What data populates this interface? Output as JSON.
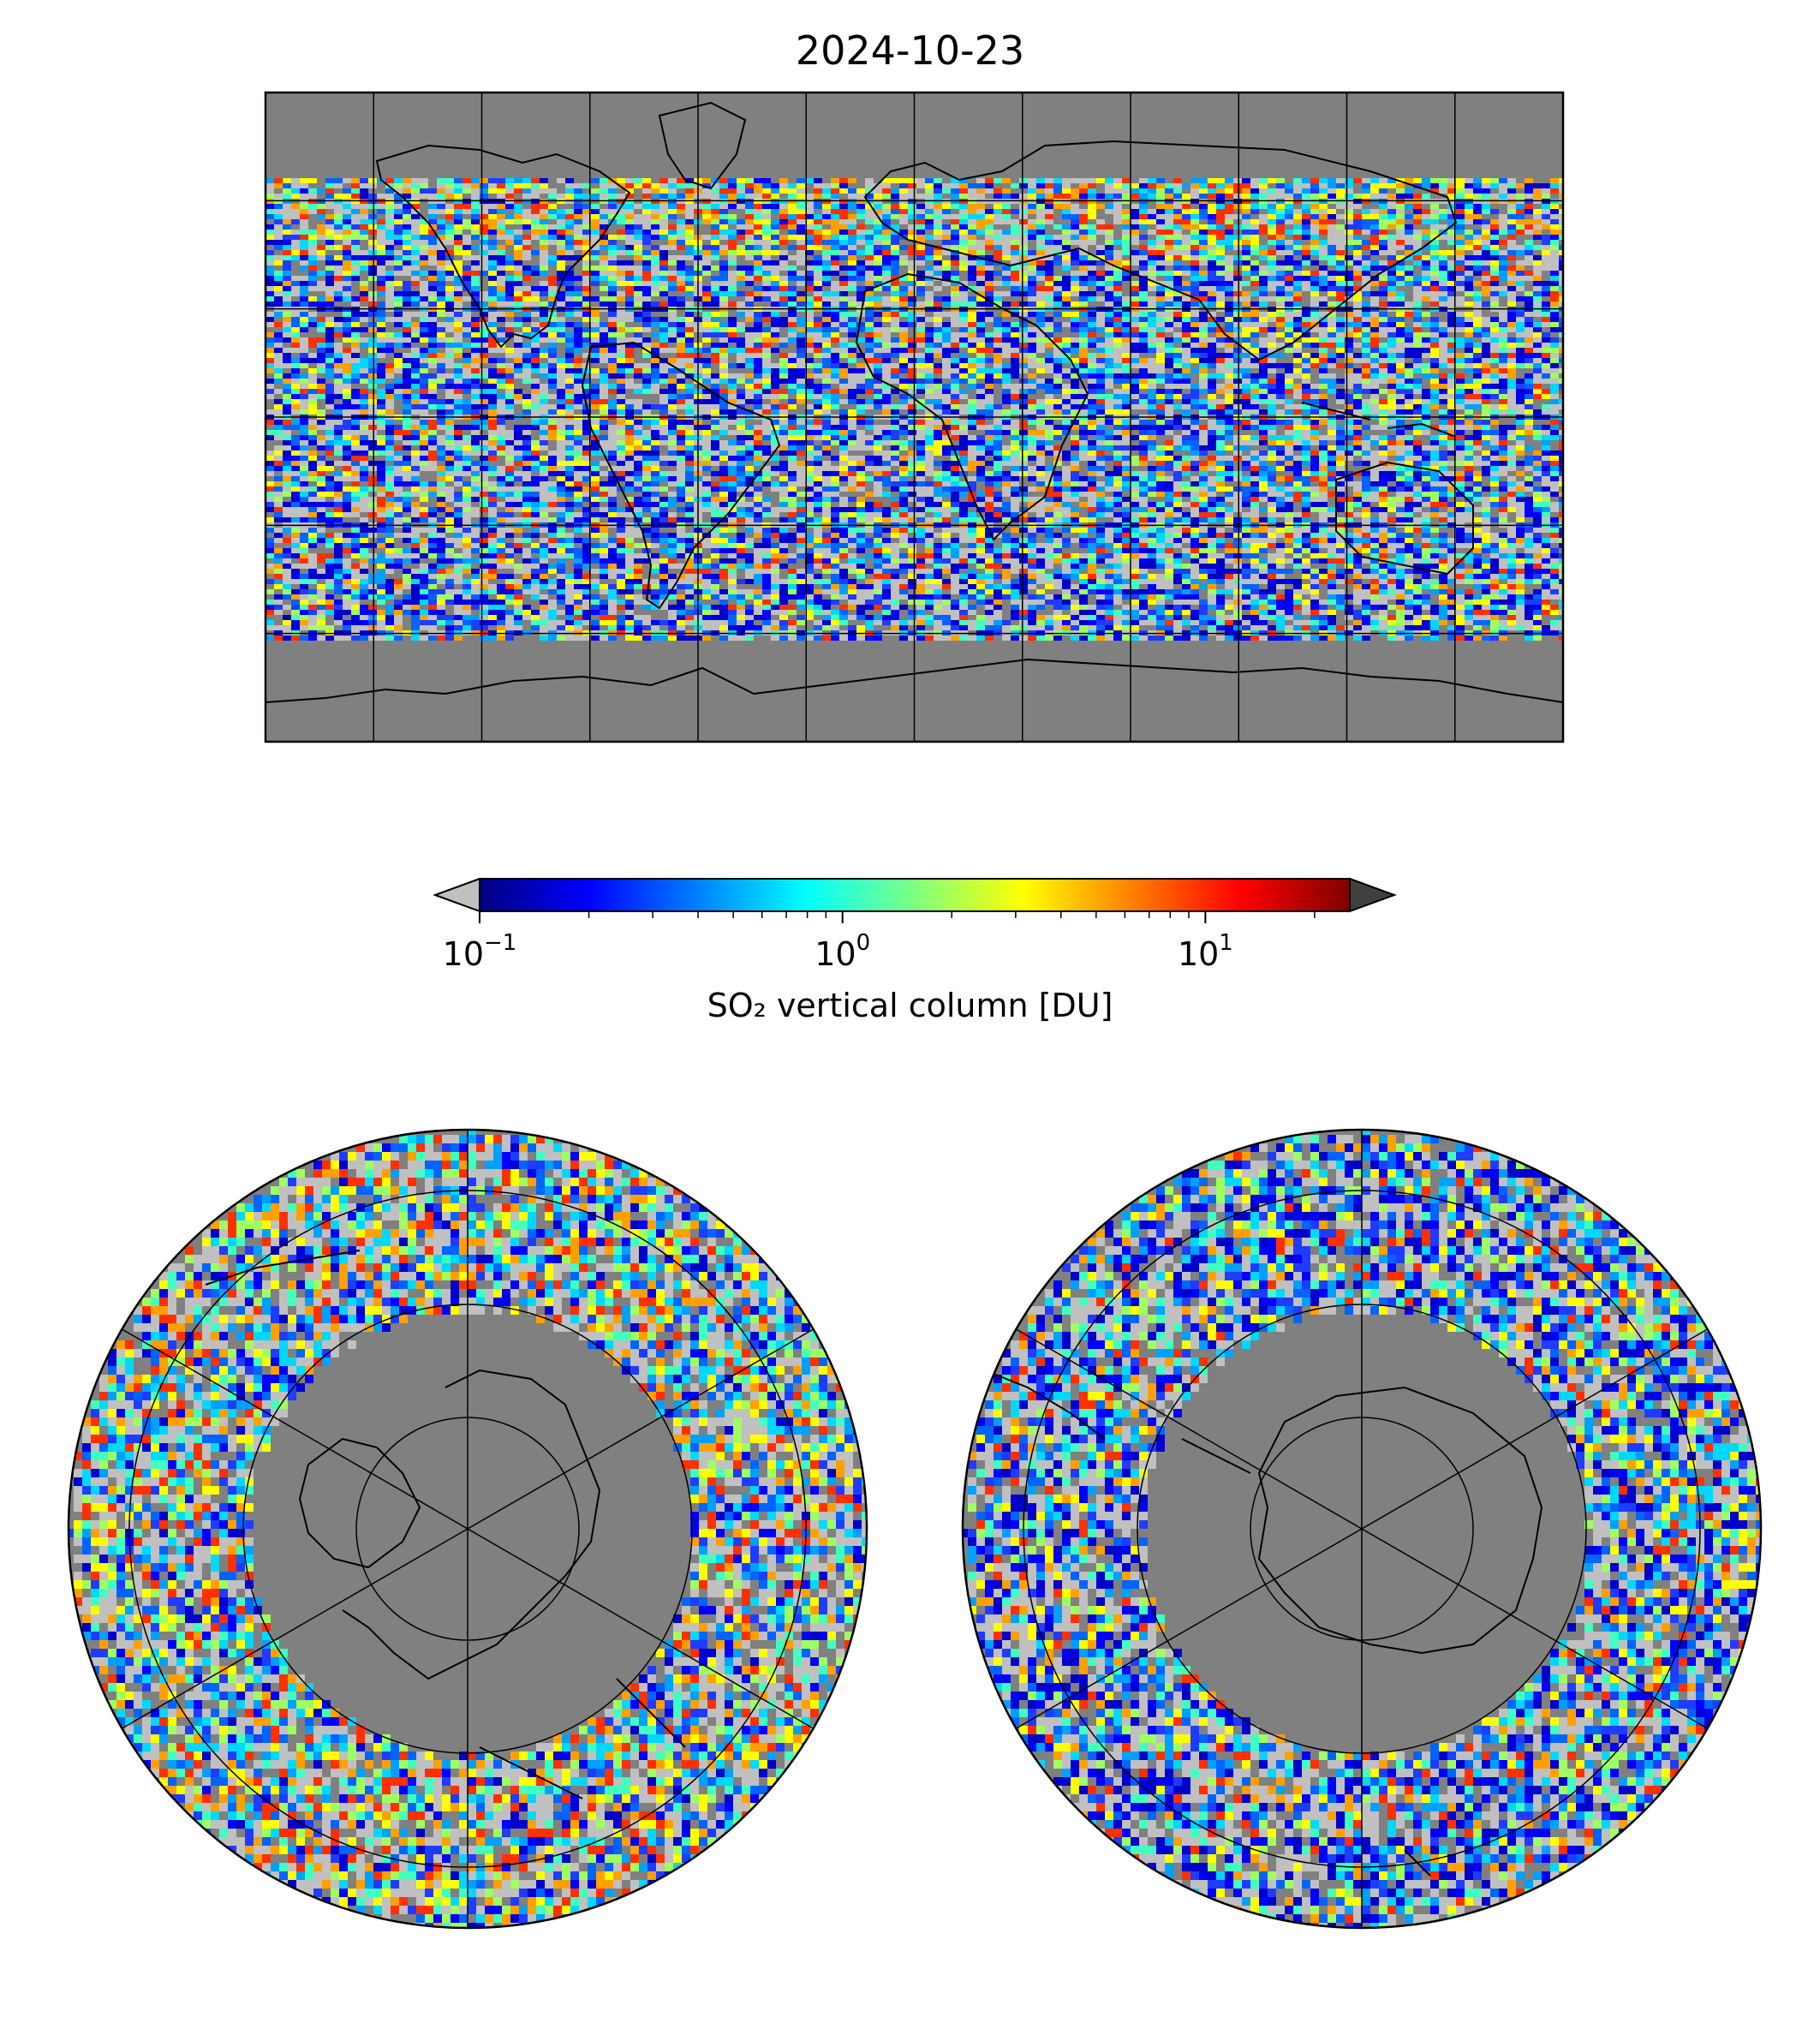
{
  "title": "2024-10-23",
  "colorbar": {
    "label": "SO₂ vertical column [DU]",
    "scale": "log",
    "range": [
      0.1,
      25
    ],
    "extend": "both",
    "under_color": "#c0c0c0",
    "over_color": "#404040",
    "colormap": [
      "#00007f",
      "#0000ff",
      "#007fff",
      "#00ffff",
      "#7fff7f",
      "#ffff00",
      "#ff7f00",
      "#ff0000",
      "#7f0000"
    ],
    "ticks": [
      {
        "base": "10",
        "exp": "−1",
        "value": 0.1
      },
      {
        "base": "10",
        "exp": "0",
        "value": 1
      },
      {
        "base": "10",
        "exp": "1",
        "value": 10
      }
    ]
  },
  "maps": {
    "global": {
      "projection": "plate-carree",
      "background": "#808080"
    },
    "north_polar": {
      "projection": "north-polar-stereographic",
      "background": "#808080"
    },
    "south_polar": {
      "projection": "south-polar-stereographic",
      "background": "#808080"
    }
  }
}
